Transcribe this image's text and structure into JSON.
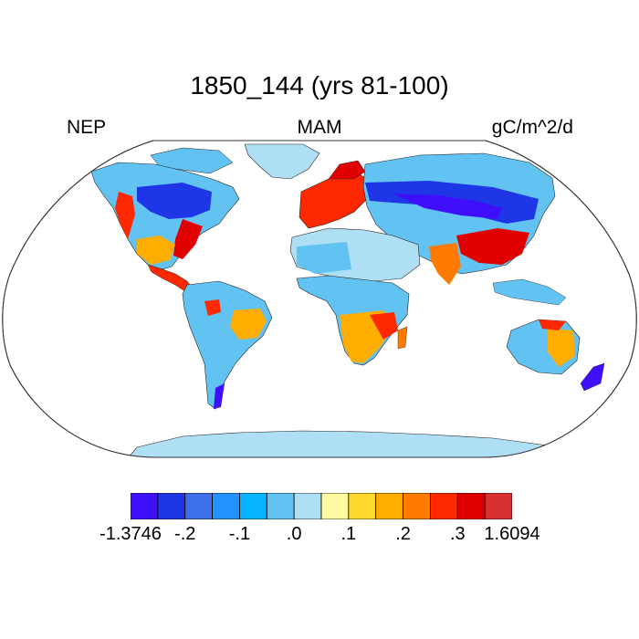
{
  "header": {
    "title": "1850_144 (yrs 81-100)",
    "left_label": "NEP",
    "center_label": "MAM",
    "right_label": "gC/m^2/d"
  },
  "colorbar": {
    "colors": [
      "#3f0ffc",
      "#1e36e6",
      "#3c6fe8",
      "#2292ff",
      "#08b2ff",
      "#62c3f3",
      "#afdff4",
      "#fff9a2",
      "#ffd82d",
      "#ffad00",
      "#ff7a00",
      "#ff2800",
      "#e10000",
      "#d93131"
    ],
    "labels": [
      "-1.3746",
      "-.2",
      "-.1",
      ".0",
      ".1",
      ".2",
      ".3",
      "1.6094"
    ]
  },
  "map": {
    "projection": "Robinson",
    "land_default": "light-blue (near zero)",
    "ocean": "white"
  }
}
